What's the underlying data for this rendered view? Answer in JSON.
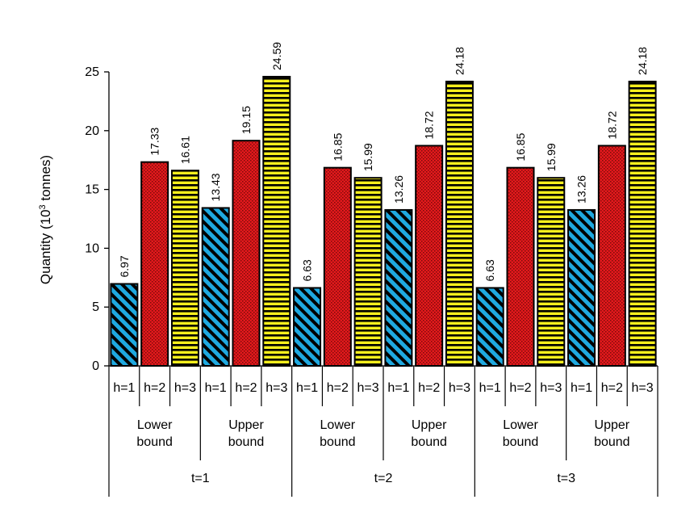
{
  "chart_data": {
    "type": "bar",
    "ylabel": "Quantity (10",
    "ylabel_sup": "3",
    "ylabel_tail": " tonnes)",
    "ylim": [
      0,
      25
    ],
    "yticks": [
      "0",
      "5",
      "10",
      "15",
      "20",
      "25"
    ],
    "series_names": [
      "h=1",
      "h=2",
      "h=3"
    ],
    "series_colors": [
      "#1fa9e0",
      "#e3191c",
      "#f7ef1d"
    ],
    "series_patterns": [
      "diagonal-stripes",
      "dots",
      "horizontal-stripes"
    ],
    "bound_labels": [
      [
        "Lower",
        "bound"
      ],
      [
        "Upper",
        "bound"
      ]
    ],
    "periods": [
      {
        "label": "t=1",
        "bounds": [
          {
            "values": [
              6.97,
              17.33,
              16.61
            ],
            "labels": [
              "6.97",
              "17.33",
              "16.61"
            ]
          },
          {
            "values": [
              13.43,
              19.15,
              24.59
            ],
            "labels": [
              "13.43",
              "19.15",
              "24.59"
            ]
          }
        ]
      },
      {
        "label": "t=2",
        "bounds": [
          {
            "values": [
              6.63,
              16.85,
              15.99
            ],
            "labels": [
              "6.63",
              "16.85",
              "15.99"
            ]
          },
          {
            "values": [
              13.26,
              18.72,
              24.18
            ],
            "labels": [
              "13.26",
              "18.72",
              "24.18"
            ]
          }
        ]
      },
      {
        "label": "t=3",
        "bounds": [
          {
            "values": [
              6.63,
              16.85,
              15.99
            ],
            "labels": [
              "6.63",
              "16.85",
              "15.99"
            ]
          },
          {
            "values": [
              13.26,
              18.72,
              24.18
            ],
            "labels": [
              "13.26",
              "18.72",
              "24.18"
            ]
          }
        ]
      }
    ]
  }
}
